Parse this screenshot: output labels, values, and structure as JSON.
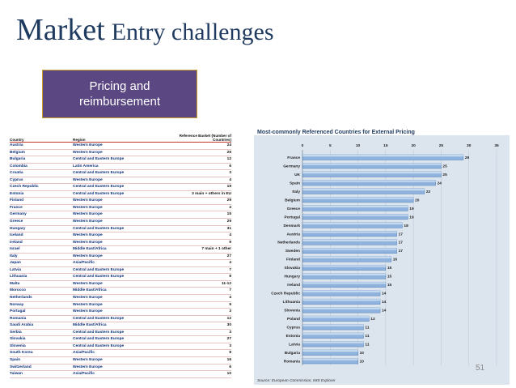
{
  "slide": {
    "title_part1": "Market",
    "title_part2": "Entry challenges",
    "badge": "Pricing and reimbursement",
    "page_number": "51"
  },
  "table": {
    "headers": [
      "Country",
      "Region",
      "Reference Basket (Number of Countries)"
    ],
    "rows": [
      [
        "Austria",
        "Western Europe",
        "24"
      ],
      [
        "Belgium",
        "Western Europe",
        "26"
      ],
      [
        "Bulgaria",
        "Central and Eastern Europe",
        "12"
      ],
      [
        "Colombia",
        "Latin America",
        "6"
      ],
      [
        "Croatia",
        "Central and Eastern Europe",
        "3"
      ],
      [
        "Cyprus",
        "Western Europe",
        "4"
      ],
      [
        "Czech Republic",
        "Central and Eastern Europe",
        "19"
      ],
      [
        "Estonia",
        "Central and Eastern Europe",
        "3 main + others in EU"
      ],
      [
        "Finland",
        "Western Europe",
        "29"
      ],
      [
        "France",
        "Western Europe",
        "4"
      ],
      [
        "Germany",
        "Western Europe",
        "15"
      ],
      [
        "Greece",
        "Western Europe",
        "29"
      ],
      [
        "Hungary",
        "Central and Eastern Europe",
        "31"
      ],
      [
        "Iceland",
        "Western Europe",
        "4"
      ],
      [
        "Ireland",
        "Western Europe",
        "9"
      ],
      [
        "Israel",
        "Middle East/Africa",
        "7 main + 1 other"
      ],
      [
        "Italy",
        "Western Europe",
        "27"
      ],
      [
        "Japan",
        "Asia/Pacific",
        "4"
      ],
      [
        "Latvia",
        "Central and Eastern Europe",
        "7"
      ],
      [
        "Lithuania",
        "Central and Eastern Europe",
        "8"
      ],
      [
        "Malta",
        "Western Europe",
        "11-12"
      ],
      [
        "Morocco",
        "Middle East/Africa",
        "7"
      ],
      [
        "Netherlands",
        "Western Europe",
        "4"
      ],
      [
        "Norway",
        "Western Europe",
        "9"
      ],
      [
        "Portugal",
        "Western Europe",
        "3"
      ],
      [
        "Romania",
        "Central and Eastern Europe",
        "12"
      ],
      [
        "Saudi Arabia",
        "Middle East/Africa",
        "30"
      ],
      [
        "Serbia",
        "Central and Eastern Europe",
        "3"
      ],
      [
        "Slovakia",
        "Central and Eastern Europe",
        "27"
      ],
      [
        "Slovenia",
        "Central and Eastern Europe",
        "3"
      ],
      [
        "South Korea",
        "Asia/Pacific",
        "8"
      ],
      [
        "Spain",
        "Western Europe",
        "16"
      ],
      [
        "Switzerland",
        "Western Europe",
        "6"
      ],
      [
        "Taiwan",
        "Asia/Pacific",
        "10"
      ]
    ]
  },
  "chart_data": {
    "type": "bar",
    "orientation": "horizontal",
    "title": "Most-commonly Referenced Countries for External Pricing",
    "source": "Source: European Commission, IMS Explorer",
    "xlim": [
      0,
      35
    ],
    "xticks": [
      0,
      5,
      10,
      15,
      20,
      25,
      30,
      35
    ],
    "categories": [
      "France",
      "Germany",
      "UK",
      "Spain",
      "Italy",
      "Belgium",
      "Greece",
      "Portugal",
      "Denmark",
      "Austria",
      "Netherlands",
      "Sweden",
      "Finland",
      "Slovakia",
      "Hungary",
      "Ireland",
      "Czech Republic",
      "Lithuania",
      "Slovenia",
      "Poland",
      "Cyprus",
      "Estonia",
      "Latvia",
      "Bulgaria",
      "Romania"
    ],
    "values": [
      29,
      25,
      25,
      24,
      22,
      20,
      19,
      19,
      18,
      17,
      17,
      17,
      16,
      15,
      15,
      15,
      14,
      14,
      14,
      12,
      11,
      11,
      11,
      10,
      10
    ],
    "colors": {
      "bar": "#8fb3dd",
      "bar_edge": "#4f7fb8",
      "background": "#dce4ee",
      "title": "#1f3a5f"
    }
  }
}
